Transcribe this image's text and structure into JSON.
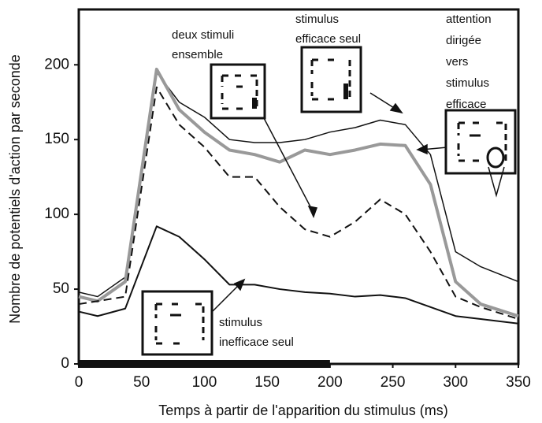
{
  "chart_data": {
    "type": "line",
    "y_label": "Nombre de potentiels d'action par seconde",
    "x_label": "Temps à partir de l'apparition du stimulus (ms)",
    "x": [
      0,
      15,
      37,
      62,
      80,
      100,
      120,
      140,
      160,
      180,
      200,
      220,
      240,
      260,
      280,
      300,
      320,
      350
    ],
    "series": [
      {
        "color": "#111111",
        "style": "solid",
        "width": 1.5,
        "values": [
          48,
          45,
          58,
          195,
          175,
          165,
          150,
          148,
          148,
          150,
          155,
          158,
          163,
          160,
          140,
          75,
          65,
          55
        ]
      },
      {
        "color": "#999999",
        "style": "solid",
        "width": 4,
        "values": [
          45,
          42,
          55,
          197,
          170,
          155,
          143,
          140,
          135,
          143,
          140,
          143,
          147,
          146,
          120,
          55,
          40,
          32
        ]
      },
      {
        "color": "#111111",
        "style": "dashed",
        "width": 2,
        "values": [
          40,
          42,
          45,
          185,
          160,
          145,
          125,
          125,
          105,
          90,
          85,
          95,
          110,
          100,
          75,
          45,
          38,
          30
        ]
      },
      {
        "color": "#111111",
        "style": "solid",
        "width": 2,
        "values": [
          35,
          32,
          37,
          92,
          85,
          70,
          53,
          53,
          50,
          48,
          47,
          45,
          46,
          44,
          38,
          32,
          30,
          27
        ]
      }
    ],
    "stimulus_period": [
      0,
      200
    ],
    "annotations": [
      {
        "lines": [
          "deux stimuli",
          "ensemble"
        ]
      },
      {
        "lines": [
          "stimulus",
          "efficace seul"
        ]
      },
      {
        "lines": [
          "attention",
          "dirigée",
          "vers",
          "stimulus",
          "efficace"
        ]
      },
      {
        "lines": [
          "stimulus",
          "inefficace seul"
        ]
      }
    ],
    "xlim": [
      0,
      350
    ],
    "ylim": [
      0,
      237
    ],
    "xticks": [
      0,
      50,
      100,
      150,
      200,
      250,
      300,
      350
    ],
    "yticks": [
      0,
      50,
      100,
      150,
      200
    ]
  }
}
